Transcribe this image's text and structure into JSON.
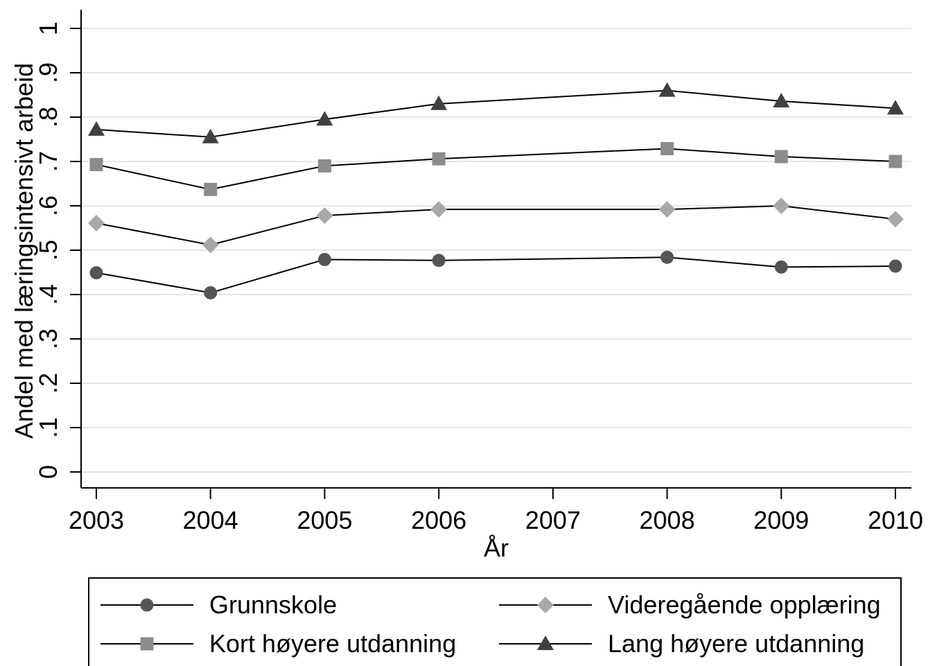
{
  "chart_data": {
    "type": "line",
    "title": "",
    "xlabel": "År",
    "ylabel": "Andel med læringsintensivt arbeid",
    "x_ticks": [
      2003,
      2004,
      2005,
      2006,
      2007,
      2008,
      2009,
      2010
    ],
    "x_tick_labels": [
      "2003",
      "2004",
      "2005",
      "2006",
      "2007",
      "2008",
      "2009",
      "2010"
    ],
    "y_ticks": [
      0,
      0.1,
      0.2,
      0.3,
      0.4,
      0.5,
      0.6,
      0.7,
      0.8,
      0.9,
      1
    ],
    "y_tick_labels": [
      "0",
      ".1",
      ".2",
      ".3",
      ".4",
      ".5",
      ".6",
      ".7",
      ".8",
      ".9",
      "1"
    ],
    "xlim": [
      2003,
      2010
    ],
    "ylim": [
      0,
      1
    ],
    "grid": "horizontal",
    "legend_position": "bottom",
    "x": [
      2003,
      2004,
      2005,
      2006,
      2008,
      2009,
      2010
    ],
    "series": [
      {
        "name": "Grunnskole",
        "marker": "circle",
        "color": "#555555",
        "values": [
          0.449,
          0.404,
          0.479,
          0.477,
          0.484,
          0.462,
          0.464
        ]
      },
      {
        "name": "Videregående opplæring",
        "marker": "diamond",
        "color": "#a8a8a8",
        "values": [
          0.561,
          0.512,
          0.578,
          0.592,
          0.592,
          0.6,
          0.57
        ]
      },
      {
        "name": "Kort høyere utdanning",
        "marker": "square",
        "color": "#8c8c8c",
        "values": [
          0.693,
          0.637,
          0.69,
          0.706,
          0.729,
          0.711,
          0.7
        ]
      },
      {
        "name": "Lang høyere utdanning",
        "marker": "triangle",
        "color": "#404040",
        "values": [
          0.772,
          0.755,
          0.795,
          0.83,
          0.86,
          0.836,
          0.82
        ]
      }
    ]
  }
}
